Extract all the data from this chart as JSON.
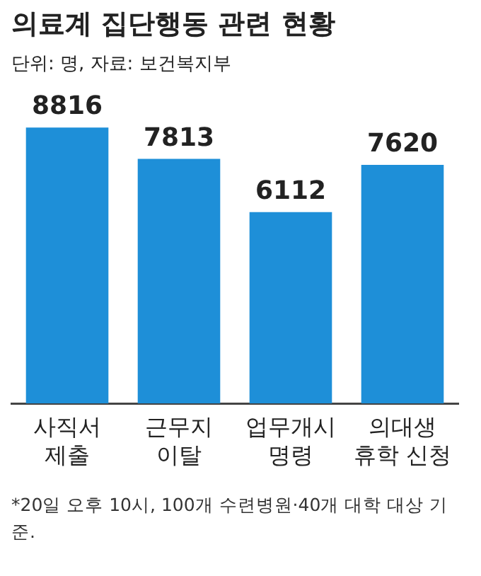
{
  "chart_data": {
    "type": "bar",
    "title": "의료계 집단행동 관련 현황",
    "subtitle": "단위: 명, 자료: 보건복지부",
    "categories": [
      "사직서 제출",
      "근무지 이탈",
      "업무개시 명령",
      "의대생 휴학 신청"
    ],
    "values": [
      8816,
      7813,
      6112,
      7620
    ],
    "color": "#1e8fd8",
    "data_labels": true,
    "grid": false,
    "legend": false,
    "annotations": [
      "*20일 오후 10시, 100개 수련병원·40개 대학 대상 기준."
    ]
  }
}
